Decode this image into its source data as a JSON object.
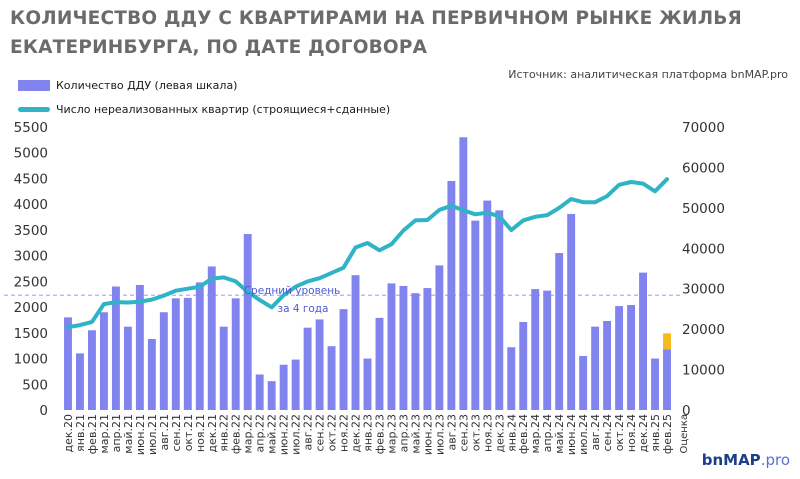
{
  "title": {
    "line1": "КОЛИЧЕСТВО ДДУ С КВАРТИРАМИ НА ПЕРВИЧНОМ РЫНКЕ ЖИЛЬЯ",
    "line2": "ЕКАТЕРИНБУРГА, ПО ДАТЕ ДОГОВОРА"
  },
  "source": "Источник: аналитическая платформа bnMAP.pro",
  "logo": {
    "main": "bnMAP",
    "suffix": ".pro"
  },
  "colors": {
    "bar": "#8183ef",
    "line": "#2fb3c6",
    "estimate": "#f8b91c",
    "avg": "#aab0f2",
    "axis_text": "#333333"
  },
  "chart_data": {
    "type": "bar",
    "categories": [
      "дек.20",
      "янв.21",
      "фев.21",
      "мар.21",
      "апр.21",
      "май.21",
      "июн.21",
      "июл.21",
      "авг.21",
      "сен.21",
      "окт.21",
      "ноя.21",
      "дек.21",
      "янв.22",
      "фев.22",
      "мар.22",
      "апр.22",
      "май.22",
      "июн.22",
      "июл.22",
      "авг.22",
      "сен.22",
      "окт.22",
      "ноя.22",
      "дек.22",
      "янв.23",
      "фев.23",
      "мар.23",
      "апр.23",
      "май.23",
      "июн.23",
      "июл.23",
      "авг.23",
      "сен.23",
      "окт.23",
      "ноя.23",
      "дек.23",
      "янв.24",
      "фев.24",
      "мар.24",
      "апр.24",
      "май.24",
      "июн.24",
      "июл.24",
      "авг.24",
      "сен.24",
      "окт.24",
      "ноя.24",
      "дек.24",
      "янв.25",
      "фев.25"
    ],
    "series": [
      {
        "name": "Количество ДДУ (левая шкала)",
        "type": "bar",
        "axis": "left",
        "values": [
          1800,
          1100,
          1550,
          1900,
          2400,
          1620,
          2430,
          1380,
          1900,
          2170,
          2180,
          2480,
          2790,
          1620,
          2170,
          3420,
          690,
          560,
          880,
          980,
          1600,
          1760,
          1240,
          1960,
          2620,
          1000,
          1790,
          2460,
          2410,
          2270,
          2370,
          2810,
          4450,
          5300,
          3680,
          4070,
          3880,
          1220,
          1710,
          2350,
          2320,
          3050,
          3810,
          1050,
          1620,
          1730,
          2020,
          2040,
          2670,
          1000,
          1180
        ]
      },
      {
        "name": "Число нереализованных квартир (строящиеся+сданные)",
        "type": "line",
        "axis": "right",
        "values": [
          20500,
          21000,
          21800,
          26200,
          26700,
          26600,
          26800,
          27300,
          28300,
          29500,
          30000,
          30500,
          32500,
          32800,
          31800,
          29200,
          27200,
          25400,
          28400,
          30500,
          31800,
          32600,
          33900,
          35200,
          40200,
          41300,
          39500,
          41000,
          44400,
          46900,
          47000,
          49500,
          50500,
          49400,
          48400,
          48800,
          47900,
          44500,
          46900,
          47800,
          48200,
          50000,
          52200,
          51400,
          51400,
          52900,
          55700,
          56400,
          56000,
          54100,
          57100
        ]
      }
    ],
    "estimate": {
      "category": "фев.25",
      "from": 1180,
      "to": 1490,
      "label": "Оценка"
    },
    "average": {
      "value": 2230,
      "label_line1": "Средний уровень",
      "label_line2": "за 4 года"
    },
    "left_axis": {
      "min": 0,
      "max": 5500,
      "ticks": [
        0,
        500,
        1000,
        1500,
        2000,
        2500,
        3000,
        3500,
        4000,
        4500,
        5000,
        5500
      ]
    },
    "right_axis": {
      "min": 0,
      "max": 70000,
      "ticks": [
        0,
        10000,
        20000,
        30000,
        40000,
        50000,
        60000,
        70000
      ]
    },
    "legend_position": "top-left",
    "grid": false
  }
}
